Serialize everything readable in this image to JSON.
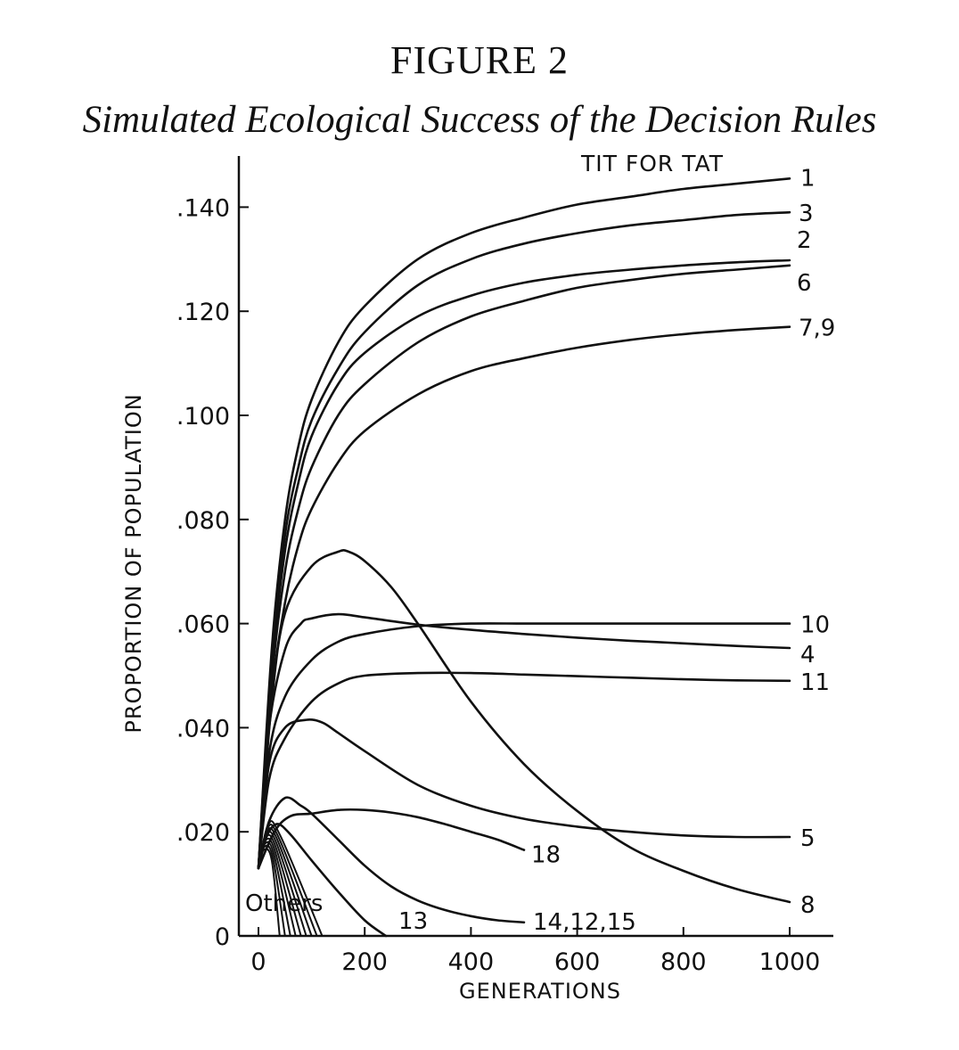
{
  "figure": {
    "label": "FIGURE 2",
    "title": "Simulated Ecological Success of the Decision Rules"
  },
  "chart_data": {
    "type": "line",
    "xlabel": "GENERATIONS",
    "ylabel": "PROPORTION OF POPULATION",
    "xlim": [
      0,
      1000
    ],
    "ylim": [
      0,
      0.15
    ],
    "xticks": [
      0,
      200,
      400,
      600,
      800,
      1000
    ],
    "xtick_labels": [
      "0",
      "200",
      "400",
      "600",
      "800",
      "1000"
    ],
    "yticks": [
      0,
      0.02,
      0.04,
      0.06,
      0.08,
      0.1,
      0.12,
      0.14
    ],
    "ytick_labels": [
      "0",
      ".020",
      ".040",
      ".060",
      ".080",
      ".100",
      ".120",
      ".140"
    ],
    "annotations": {
      "top": "TIT FOR TAT",
      "others": "Others"
    },
    "series": [
      {
        "name": "1",
        "x": [
          0,
          25,
          50,
          75,
          100,
          150,
          200,
          300,
          400,
          500,
          600,
          700,
          800,
          900,
          1000
        ],
        "y": [
          0.013,
          0.055,
          0.08,
          0.094,
          0.103,
          0.114,
          0.121,
          0.13,
          0.135,
          0.138,
          0.1405,
          0.142,
          0.1435,
          0.1445,
          0.1455
        ]
      },
      {
        "name": "3",
        "x": [
          0,
          25,
          50,
          75,
          100,
          150,
          200,
          300,
          400,
          500,
          600,
          700,
          800,
          900,
          1000
        ],
        "y": [
          0.013,
          0.053,
          0.077,
          0.09,
          0.099,
          0.109,
          0.116,
          0.125,
          0.13,
          0.133,
          0.135,
          0.1365,
          0.1375,
          0.1385,
          0.139
        ]
      },
      {
        "name": "2",
        "x": [
          0,
          25,
          50,
          75,
          100,
          150,
          200,
          300,
          400,
          500,
          600,
          700,
          800,
          900,
          1000
        ],
        "y": [
          0.013,
          0.051,
          0.074,
          0.087,
          0.096,
          0.106,
          0.112,
          0.119,
          0.123,
          0.1255,
          0.127,
          0.128,
          0.1288,
          0.1294,
          0.1298
        ]
      },
      {
        "name": "6",
        "x": [
          0,
          25,
          50,
          75,
          100,
          150,
          200,
          300,
          400,
          500,
          600,
          700,
          800,
          900,
          1000
        ],
        "y": [
          0.013,
          0.049,
          0.07,
          0.082,
          0.09,
          0.1,
          0.106,
          0.114,
          0.119,
          0.122,
          0.1245,
          0.126,
          0.1272,
          0.128,
          0.1288
        ]
      },
      {
        "name": "7,9",
        "x": [
          0,
          25,
          50,
          75,
          100,
          150,
          200,
          300,
          400,
          500,
          600,
          700,
          800,
          900,
          1000
        ],
        "y": [
          0.013,
          0.046,
          0.064,
          0.075,
          0.082,
          0.091,
          0.097,
          0.104,
          0.1085,
          0.111,
          0.113,
          0.1145,
          0.1156,
          0.1164,
          0.117
        ]
      },
      {
        "name": "10",
        "x": [
          0,
          20,
          50,
          100,
          150,
          200,
          300,
          400,
          500,
          600,
          700,
          800,
          900,
          1000
        ],
        "y": [
          0.013,
          0.035,
          0.046,
          0.053,
          0.0565,
          0.058,
          0.0595,
          0.06,
          0.06,
          0.06,
          0.06,
          0.06,
          0.06,
          0.06
        ]
      },
      {
        "name": "4",
        "x": [
          0,
          20,
          50,
          80,
          100,
          150,
          200,
          300,
          400,
          500,
          600,
          700,
          800,
          900,
          1000
        ],
        "y": [
          0.013,
          0.04,
          0.055,
          0.06,
          0.061,
          0.0618,
          0.0612,
          0.0598,
          0.0588,
          0.058,
          0.0573,
          0.0567,
          0.0562,
          0.0557,
          0.0553
        ]
      },
      {
        "name": "11",
        "x": [
          0,
          20,
          50,
          100,
          150,
          200,
          300,
          400,
          500,
          600,
          700,
          800,
          900,
          1000
        ],
        "y": [
          0.013,
          0.03,
          0.038,
          0.045,
          0.0485,
          0.05,
          0.0505,
          0.0505,
          0.0502,
          0.0499,
          0.0496,
          0.0493,
          0.0491,
          0.049
        ]
      },
      {
        "name": "8",
        "x": [
          0,
          25,
          50,
          100,
          150,
          170,
          200,
          250,
          300,
          400,
          500,
          600,
          700,
          800,
          900,
          1000
        ],
        "y": [
          0.013,
          0.045,
          0.062,
          0.071,
          0.0738,
          0.0738,
          0.072,
          0.067,
          0.06,
          0.045,
          0.033,
          0.024,
          0.017,
          0.0125,
          0.009,
          0.0065
        ]
      },
      {
        "name": "5",
        "x": [
          0,
          20,
          50,
          90,
          120,
          150,
          200,
          300,
          400,
          500,
          600,
          700,
          800,
          900,
          1000
        ],
        "y": [
          0.013,
          0.033,
          0.04,
          0.0415,
          0.041,
          0.039,
          0.0355,
          0.029,
          0.025,
          0.0225,
          0.021,
          0.02,
          0.0193,
          0.019,
          0.019
        ]
      },
      {
        "name": "18",
        "x": [
          0,
          30,
          60,
          100,
          150,
          200,
          250,
          300,
          350,
          400,
          450,
          500
        ],
        "y": [
          0.013,
          0.02,
          0.023,
          0.0235,
          0.0242,
          0.0242,
          0.0237,
          0.0228,
          0.0215,
          0.02,
          0.0185,
          0.0165
        ]
      },
      {
        "name": "14,12,15",
        "x": [
          0,
          20,
          50,
          80,
          100,
          150,
          200,
          250,
          300,
          350,
          400,
          450,
          500
        ],
        "y": [
          0.013,
          0.022,
          0.0265,
          0.025,
          0.0235,
          0.0185,
          0.0135,
          0.0095,
          0.0068,
          0.005,
          0.0038,
          0.003,
          0.0026
        ]
      },
      {
        "name": "13",
        "x": [
          0,
          15,
          35,
          60,
          100,
          150,
          200,
          240
        ],
        "y": [
          0.013,
          0.019,
          0.0215,
          0.0195,
          0.0145,
          0.0085,
          0.003,
          0.0
        ]
      }
    ]
  }
}
